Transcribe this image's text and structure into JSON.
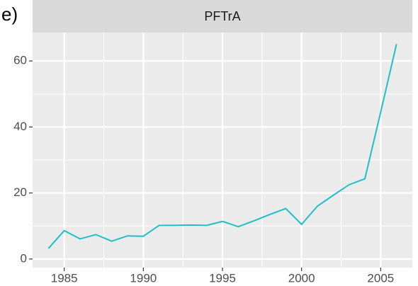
{
  "chart_data": {
    "type": "line",
    "annotation": "e)",
    "title": "PFTrA",
    "x": [
      1984,
      1985,
      1986,
      1987,
      1988,
      1989,
      1990,
      1991,
      1992,
      1993,
      1994,
      1995,
      1996,
      1997,
      1998,
      1999,
      2000,
      2001,
      2002,
      2003,
      2004,
      2005,
      2006
    ],
    "series": [
      {
        "name": "PFTrA",
        "color": "#20bfc5",
        "values": [
          3.2,
          8.6,
          6.1,
          7.4,
          5.4,
          7.0,
          6.9,
          10.2,
          10.2,
          10.3,
          10.2,
          11.4,
          9.8,
          11.6,
          13.5,
          15.3,
          10.5,
          16.0,
          19.3,
          22.5,
          24.3,
          44.5,
          65.1
        ]
      }
    ],
    "xlim": [
      1983,
      2007
    ],
    "xticks": [
      1985,
      1990,
      1995,
      2000,
      2005
    ],
    "x_minor_ticks": [
      1987.5,
      1992.5,
      1997.5,
      2002.5
    ],
    "ylim": [
      -2.6,
      68.6
    ],
    "yticks": [
      0,
      20,
      40,
      60
    ],
    "y_minor_ticks": [
      10,
      30,
      50
    ],
    "grid": true
  }
}
